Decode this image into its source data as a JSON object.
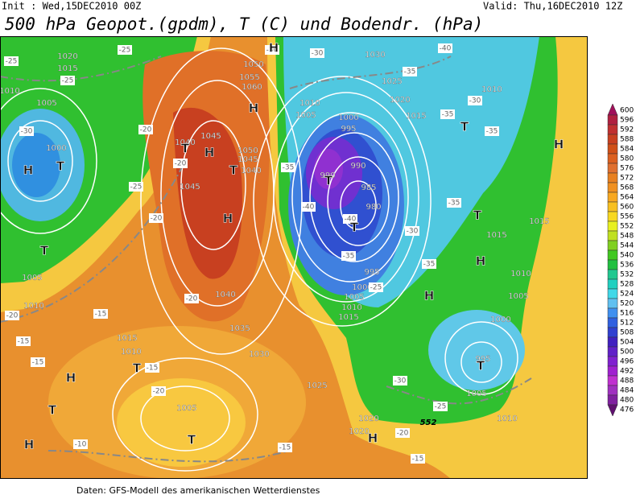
{
  "header": {
    "init": "Init : Wed,15DEC2010 00Z",
    "valid": "Valid: Thu,16DEC2010 12Z",
    "title": "500 hPa Geopot.(gpdm), T (C) und Bodendr. (hPa)"
  },
  "colorbar": {
    "levels": [
      600,
      596,
      592,
      588,
      584,
      580,
      576,
      572,
      568,
      564,
      560,
      556,
      552,
      548,
      544,
      540,
      536,
      532,
      528,
      524,
      520,
      516,
      512,
      508,
      504,
      500,
      496,
      492,
      488,
      484,
      480,
      476
    ],
    "colors": [
      "#a0105a",
      "#b02040",
      "#c03030",
      "#c84020",
      "#d05018",
      "#dc6020",
      "#e07030",
      "#e88020",
      "#f09020",
      "#f8a820",
      "#f8c020",
      "#f8d820",
      "#e8f020",
      "#c0e020",
      "#80d020",
      "#40c820",
      "#20c040",
      "#20c890",
      "#20d0c0",
      "#40d8e8",
      "#60c0f0",
      "#4090f0",
      "#3060e0",
      "#3040d0",
      "#4020c0",
      "#6020c8",
      "#8020d0",
      "#a020d0",
      "#c030d0",
      "#a030c0",
      "#8020a0",
      "#601070"
    ]
  },
  "map_labels": {
    "pressure_centers": [
      "H",
      "T",
      "T",
      "H",
      "T",
      "H",
      "T",
      "H",
      "H",
      "T",
      "T",
      "T",
      "T",
      "H",
      "H",
      "T",
      "H",
      "T",
      "T",
      "H",
      "T",
      "H",
      "H"
    ],
    "isobars": [
      "1020",
      "1015",
      "1010",
      "1005",
      "1000",
      "1005",
      "1010",
      "1015",
      "1010",
      "1005",
      "1040",
      "1045",
      "1050",
      "1045",
      "1040",
      "1045",
      "1040",
      "1035",
      "1030",
      "1025",
      "1020",
      "1020",
      "1050",
      "1055",
      "1060",
      "1010",
      "1005",
      "1000",
      "995",
      "990",
      "985",
      "980",
      "990",
      "995",
      "1000",
      "1005",
      "1010",
      "1015",
      "1030",
      "1025",
      "1020",
      "1015",
      "1010",
      "1015",
      "1015",
      "1010",
      "1005",
      "1000",
      "995",
      "1005",
      "1010"
    ],
    "isotherms": [
      "-25",
      "-25",
      "-25",
      "-30",
      "-20",
      "-25",
      "-20",
      "-20",
      "-15",
      "-20",
      "-15",
      "-15",
      "-15",
      "-20",
      "-10",
      "-15",
      "-15",
      "-20",
      "-25",
      "-30",
      "-30",
      "-35",
      "-30",
      "-35",
      "-40",
      "-30",
      "-35",
      "-35",
      "-40",
      "-40",
      "-35",
      "-25",
      "-30",
      "-35",
      "-35",
      "-20"
    ],
    "geopotential": [
      "552"
    ]
  },
  "footer": "Daten: GFS-Modell des amerikanischen Wetterdienstes"
}
